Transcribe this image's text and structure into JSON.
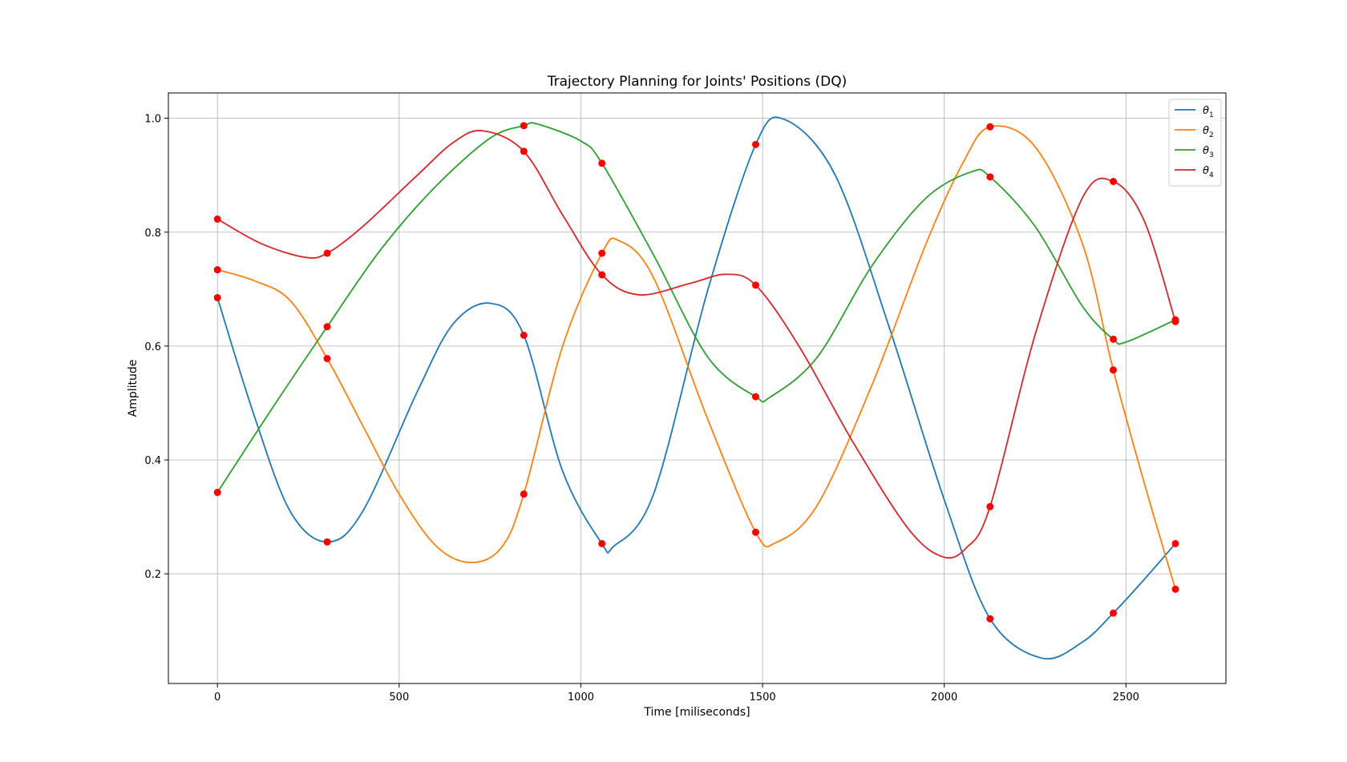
{
  "chart_data": {
    "type": "line",
    "title": "Trajectory Planning for Joints' Positions (DQ)",
    "xlabel": "Time [miliseconds]",
    "ylabel": "Amplitude",
    "xlim": [
      -135,
      2775
    ],
    "ylim": [
      0.0074,
      1.0445
    ],
    "x_ticks": [
      0,
      500,
      1000,
      1500,
      2000,
      2500
    ],
    "y_ticks": [
      0.2,
      0.4,
      0.6,
      0.8,
      1.0
    ],
    "x_tick_labels": [
      "0",
      "500",
      "1000",
      "1500",
      "2000",
      "2500"
    ],
    "y_tick_labels": [
      "0.2",
      "0.4",
      "0.6",
      "0.8",
      "1.0"
    ],
    "grid": true,
    "legend_position": "top-right",
    "waypoint_color": "#ff0000",
    "waypoint_times": [
      0,
      302,
      843,
      1058,
      1481,
      2126,
      2465,
      2636
    ],
    "series": [
      {
        "name": "θ1",
        "legend_base": "θ",
        "legend_sub": "1",
        "color": "#1f77b4",
        "waypoints": [
          0.685,
          0.256,
          0.619,
          0.253,
          0.954,
          0.121,
          0.131,
          0.253
        ],
        "curve_x": [
          0,
          100,
          200,
          302,
          400,
          550,
          650,
          753,
          843,
          950,
          1058,
          1090,
          1200,
          1350,
          1481,
          1560,
          1700,
          1850,
          2000,
          2126,
          2268,
          2380,
          2465,
          2550,
          2636
        ],
        "curve_y": [
          0.685,
          0.48,
          0.31,
          0.256,
          0.31,
          0.52,
          0.64,
          0.675,
          0.619,
          0.38,
          0.253,
          0.248,
          0.34,
          0.7,
          0.954,
          0.998,
          0.9,
          0.63,
          0.33,
          0.121,
          0.052,
          0.08,
          0.131,
          0.19,
          0.253
        ]
      },
      {
        "name": "θ2",
        "legend_base": "θ",
        "legend_sub": "2",
        "color": "#ff7f0e",
        "waypoints": [
          0.734,
          0.578,
          0.34,
          0.763,
          0.273,
          0.985,
          0.558,
          0.173
        ],
        "curve_x": [
          0,
          100,
          200,
          302,
          400,
          500,
          600,
          693,
          780,
          843,
          950,
          1058,
          1105,
          1200,
          1350,
          1481,
          1537,
          1650,
          1800,
          1950,
          2050,
          2126,
          2250,
          2380,
          2465,
          2550,
          2636
        ],
        "curve_y": [
          0.734,
          0.715,
          0.68,
          0.578,
          0.46,
          0.34,
          0.25,
          0.22,
          0.245,
          0.34,
          0.6,
          0.763,
          0.785,
          0.72,
          0.47,
          0.273,
          0.255,
          0.32,
          0.53,
          0.78,
          0.92,
          0.985,
          0.95,
          0.78,
          0.558,
          0.36,
          0.173
        ]
      },
      {
        "name": "θ3",
        "legend_base": "θ",
        "legend_sub": "3",
        "color": "#2ca02c",
        "waypoints": [
          0.343,
          0.634,
          0.987,
          0.921,
          0.511,
          0.897,
          0.612,
          0.646
        ],
        "curve_x": [
          0,
          150,
          302,
          450,
          600,
          750,
          843,
          880,
          1000,
          1058,
          1200,
          1350,
          1481,
          1520,
          1650,
          1800,
          1950,
          2075,
          2126,
          2250,
          2380,
          2465,
          2500,
          2636
        ],
        "curve_y": [
          0.343,
          0.49,
          0.634,
          0.77,
          0.88,
          0.965,
          0.987,
          0.99,
          0.96,
          0.921,
          0.76,
          0.58,
          0.511,
          0.51,
          0.58,
          0.74,
          0.86,
          0.906,
          0.897,
          0.81,
          0.67,
          0.612,
          0.607,
          0.646
        ]
      },
      {
        "name": "θ4",
        "legend_base": "θ",
        "legend_sub": "4",
        "color": "#d62728",
        "waypoints": [
          0.823,
          0.763,
          0.942,
          0.725,
          0.707,
          0.318,
          0.889,
          0.643
        ],
        "curve_x": [
          0,
          120,
          240,
          302,
          400,
          550,
          650,
          730,
          843,
          950,
          1058,
          1160,
          1300,
          1400,
          1481,
          1600,
          1750,
          1900,
          1995,
          2060,
          2126,
          2250,
          2380,
          2465,
          2550,
          2636
        ],
        "curve_y": [
          0.823,
          0.78,
          0.756,
          0.763,
          0.81,
          0.9,
          0.958,
          0.978,
          0.942,
          0.83,
          0.725,
          0.69,
          0.71,
          0.726,
          0.707,
          0.6,
          0.43,
          0.28,
          0.23,
          0.245,
          0.318,
          0.62,
          0.86,
          0.889,
          0.82,
          0.643
        ]
      }
    ]
  }
}
